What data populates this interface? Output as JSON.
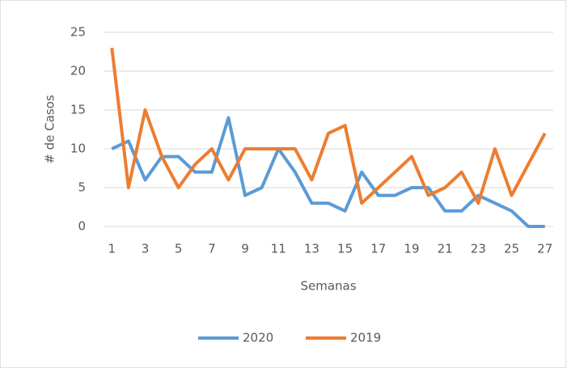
{
  "chart_data": {
    "type": "line",
    "x_label": "Semanas",
    "y_label": "# de Casos",
    "categories": [
      "1",
      null,
      "3",
      null,
      "5",
      null,
      "7",
      null,
      "9",
      null,
      "11",
      null,
      "13",
      null,
      "15",
      null,
      "17",
      null,
      "19",
      null,
      "21",
      null,
      "23",
      null,
      "25",
      null,
      "27"
    ],
    "series": [
      {
        "name": "2020",
        "color": "#5b9bd5",
        "values": [
          10,
          11,
          6,
          9,
          9,
          7,
          7,
          14,
          4,
          5,
          10,
          7,
          3,
          3,
          2,
          7,
          4,
          4,
          5,
          5,
          2,
          2,
          4,
          3,
          2,
          0,
          0
        ]
      },
      {
        "name": "2019",
        "color": "#ed7d31",
        "values": [
          23,
          5,
          15,
          9,
          5,
          8,
          10,
          6,
          10,
          10,
          10,
          10,
          6,
          12,
          13,
          3,
          5,
          7,
          9,
          4,
          5,
          7,
          3,
          10,
          4,
          8,
          12
        ]
      }
    ],
    "ylim": [
      0,
      25
    ],
    "yticks": [
      0,
      5,
      10,
      15,
      20,
      25
    ],
    "grid": true,
    "legend": "bottom"
  }
}
